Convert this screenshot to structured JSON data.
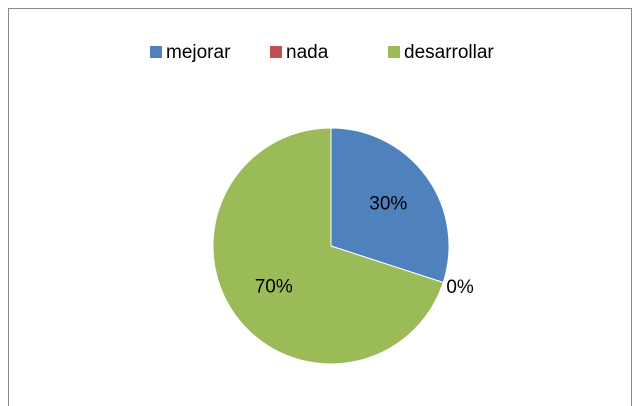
{
  "chart_data": {
    "type": "pie",
    "categories": [
      "mejorar",
      "nada",
      "desarrollar"
    ],
    "values": [
      30,
      0,
      70
    ],
    "value_labels": [
      "30%",
      "0%",
      "70%"
    ],
    "colors": [
      "#4f81bd",
      "#c0504d",
      "#9bbb59"
    ],
    "legend": "top"
  }
}
